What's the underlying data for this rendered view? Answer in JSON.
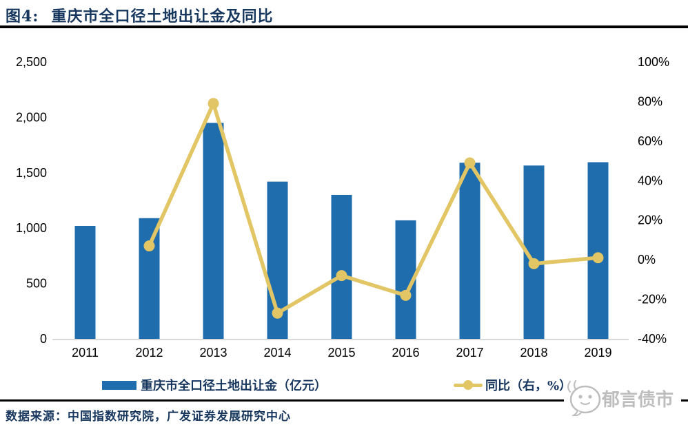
{
  "header": {
    "figure_label": "图4:",
    "title": "重庆市全口径土地出让金及同比"
  },
  "chart_data": {
    "type": "bar",
    "title": "重庆市全口径土地出让金及同比",
    "categories": [
      "2011",
      "2012",
      "2013",
      "2014",
      "2015",
      "2016",
      "2017",
      "2018",
      "2019"
    ],
    "series": [
      {
        "name": "重庆市全口径土地出让金（亿元）",
        "type": "bar",
        "axis": "left",
        "values": [
          1020,
          1090,
          1950,
          1420,
          1300,
          1070,
          1590,
          1565,
          1595
        ]
      },
      {
        "name": "同比（右，%）",
        "type": "line",
        "axis": "right",
        "values": [
          null,
          7,
          79,
          -27,
          -8,
          -18,
          49,
          -2,
          1
        ]
      }
    ],
    "left_axis": {
      "min": 0,
      "max": 2500,
      "tick_labels": [
        "2,500",
        "2,000",
        "1,500",
        "1,000",
        "500",
        "0"
      ],
      "tick_values": [
        2500,
        2000,
        1500,
        1000,
        500,
        0
      ]
    },
    "right_axis": {
      "min": -40,
      "max": 100,
      "tick_labels": [
        "100%",
        "80%",
        "60%",
        "40%",
        "20%",
        "0%",
        "-20%",
        "-40%"
      ],
      "tick_values": [
        100,
        80,
        60,
        40,
        20,
        0,
        -20,
        -40
      ]
    },
    "grid": false,
    "legend_position": "bottom"
  },
  "legend": {
    "bar_label": "重庆市全口径土地出让金（亿元）",
    "line_label": "同比（右，%）"
  },
  "footer": {
    "source": "数据来源：中国指数研究院，广发证券发展研究中心",
    "logo_text": "郁言债市"
  },
  "colors": {
    "bar": "#1F6DAD",
    "line": "#E2C565",
    "title_text": "#17375E",
    "tick_text": "#000000",
    "axis_line": "#D9D9D9",
    "rule": "#000000",
    "logo": "#BDBDBD"
  }
}
